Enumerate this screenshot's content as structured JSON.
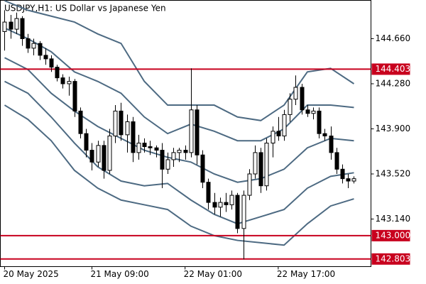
{
  "chart_data": {
    "type": "candlestick",
    "title": "USDJPY,H1:  US Dollar vs Japanese Yen",
    "x": [
      0,
      1,
      2,
      3,
      4,
      5,
      6,
      7,
      8,
      9,
      10,
      11,
      12,
      13,
      14,
      15,
      16,
      17,
      18,
      19,
      20,
      21,
      22,
      23,
      24,
      25,
      26,
      27,
      28,
      29,
      30,
      31,
      32,
      33,
      34,
      35,
      36,
      37,
      38,
      39,
      40,
      41,
      42,
      43,
      44,
      45,
      46,
      47,
      48,
      49,
      50,
      51,
      52,
      53,
      54,
      55,
      56,
      57,
      58,
      59,
      60
    ],
    "open": [
      144.72,
      144.8,
      144.74,
      144.83,
      144.66,
      144.58,
      144.62,
      144.52,
      144.49,
      144.42,
      144.33,
      144.28,
      144.3,
      144.05,
      143.86,
      143.72,
      143.62,
      143.76,
      143.55,
      143.84,
      144.05,
      143.85,
      143.96,
      143.7,
      143.78,
      143.75,
      143.74,
      143.72,
      143.56,
      143.64,
      143.7,
      143.72,
      143.7,
      144.06,
      143.68,
      143.45,
      143.28,
      143.24,
      143.28,
      143.26,
      143.34,
      143.06,
      143.34,
      143.52,
      143.7,
      143.42,
      143.78,
      143.88,
      143.84,
      144.02,
      144.15,
      144.25,
      144.06,
      144.03,
      144.05,
      143.86,
      143.84,
      143.7,
      143.56,
      143.48,
      143.46
    ],
    "high": [
      144.9,
      144.86,
      144.88,
      144.85,
      144.7,
      144.66,
      144.64,
      144.58,
      144.52,
      144.44,
      144.36,
      144.34,
      144.32,
      144.08,
      143.9,
      143.78,
      143.8,
      143.8,
      143.9,
      144.1,
      144.12,
      144.02,
      144.0,
      143.85,
      143.82,
      143.8,
      143.76,
      143.78,
      143.7,
      143.74,
      143.74,
      143.76,
      144.41,
      144.1,
      143.72,
      143.48,
      143.36,
      143.32,
      143.36,
      143.38,
      143.36,
      143.38,
      143.56,
      143.76,
      143.74,
      143.82,
      143.92,
      144.0,
      144.06,
      144.2,
      144.35,
      144.28,
      144.1,
      144.08,
      144.08,
      143.9,
      143.92,
      143.74,
      143.6,
      143.52,
      143.5
    ],
    "low": [
      144.56,
      144.66,
      144.7,
      144.6,
      144.54,
      144.52,
      144.48,
      144.44,
      144.38,
      144.3,
      144.24,
      144.18,
      144.0,
      143.82,
      143.66,
      143.55,
      143.58,
      143.48,
      143.52,
      143.78,
      143.8,
      143.7,
      143.62,
      143.64,
      143.7,
      143.68,
      143.66,
      143.4,
      143.52,
      143.58,
      143.62,
      143.64,
      143.66,
      143.6,
      143.4,
      143.22,
      143.18,
      143.16,
      143.2,
      143.22,
      143.02,
      142.8,
      143.3,
      143.48,
      143.36,
      143.38,
      143.66,
      143.8,
      143.8,
      143.96,
      144.1,
      144.02,
      144.0,
      143.98,
      143.82,
      143.8,
      143.64,
      143.52,
      143.44,
      143.4,
      143.44
    ],
    "close": [
      144.8,
      144.74,
      144.83,
      144.66,
      144.58,
      144.62,
      144.52,
      144.49,
      144.42,
      144.33,
      144.28,
      144.3,
      144.05,
      143.86,
      143.72,
      143.62,
      143.76,
      143.55,
      143.84,
      144.05,
      143.85,
      143.96,
      143.7,
      143.78,
      143.75,
      143.74,
      143.72,
      143.56,
      143.64,
      143.7,
      143.72,
      143.7,
      144.06,
      143.68,
      143.45,
      143.28,
      143.24,
      143.28,
      143.26,
      143.34,
      143.06,
      143.34,
      143.52,
      143.7,
      143.42,
      143.78,
      143.88,
      143.84,
      144.02,
      144.15,
      144.25,
      144.06,
      144.03,
      144.05,
      143.86,
      143.84,
      143.7,
      143.56,
      143.48,
      143.46,
      143.48
    ],
    "bands_x": [
      0,
      4,
      8,
      12,
      16,
      20,
      24,
      28,
      32,
      36,
      40,
      44,
      48,
      52,
      56,
      60
    ],
    "bands": [
      {
        "values": [
          144.98,
          144.9,
          144.85,
          144.8,
          144.7,
          144.62,
          144.3,
          144.1,
          144.1,
          144.1,
          144.0,
          143.97,
          144.1,
          144.38,
          144.41,
          144.28
        ]
      },
      {
        "values": [
          144.75,
          144.66,
          144.55,
          144.38,
          144.3,
          144.2,
          144.0,
          143.86,
          143.94,
          143.88,
          143.8,
          143.8,
          143.9,
          144.1,
          144.1,
          144.08
        ]
      },
      {
        "values": [
          144.5,
          144.4,
          144.2,
          144.05,
          143.92,
          143.82,
          143.72,
          143.66,
          143.62,
          143.52,
          143.45,
          143.48,
          143.56,
          143.74,
          143.82,
          143.8
        ]
      },
      {
        "values": [
          144.3,
          144.2,
          144.0,
          143.78,
          143.58,
          143.46,
          143.42,
          143.44,
          143.3,
          143.18,
          143.1,
          143.16,
          143.22,
          143.4,
          143.5,
          143.53
        ]
      },
      {
        "values": [
          144.1,
          143.98,
          143.8,
          143.55,
          143.4,
          143.3,
          143.26,
          143.22,
          143.08,
          143.0,
          142.96,
          142.94,
          142.92,
          143.1,
          143.25,
          143.31
        ]
      }
    ],
    "band_color": "#4d6a82",
    "up_color": "#ffffff",
    "down_color": "#000000",
    "level_color": "#c8001e",
    "levels": [
      {
        "value": 144.403,
        "label": "144.403"
      },
      {
        "value": 143.0,
        "label": "143.000"
      },
      142.803
    ],
    "ylim": [
      142.739,
      144.983
    ],
    "yticks": [
      {
        "value": 144.66,
        "label": "144.660"
      },
      {
        "value": 144.28,
        "label": "144.280"
      },
      {
        "value": 143.9,
        "label": "143.900"
      },
      {
        "value": 143.52,
        "label": "143.520"
      },
      {
        "value": 143.14,
        "label": "143.140"
      }
    ],
    "xlim": [
      -0.73,
      62.93
    ],
    "xticks": [
      {
        "value": 0,
        "label": "20 May 2025"
      },
      {
        "value": 15,
        "label": "21 May 09:00"
      },
      {
        "value": 31,
        "label": "22 May 01:00"
      },
      {
        "value": 47,
        "label": "22 May 17:00"
      }
    ]
  }
}
